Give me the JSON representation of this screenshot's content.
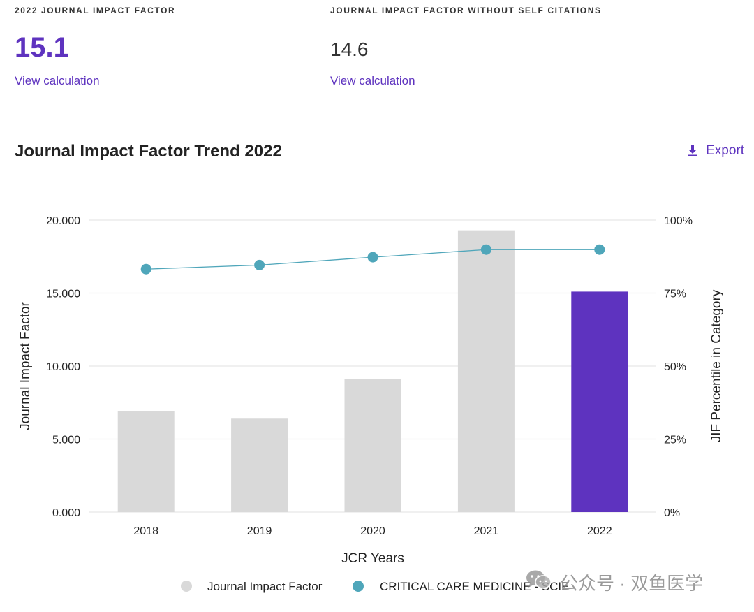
{
  "metrics": [
    {
      "label": "2022 JOURNAL IMPACT FACTOR",
      "value": "15.1",
      "link": "View calculation"
    },
    {
      "label": "JOURNAL IMPACT FACTOR WITHOUT SELF CITATIONS",
      "value": "14.6",
      "link": "View calculation"
    }
  ],
  "section": {
    "title": "Journal Impact Factor Trend 2022",
    "export_label": "Export"
  },
  "watermark": {
    "text": "公众号 · 双鱼医学",
    "icon": "wechat-icon"
  },
  "colors": {
    "accent": "#5e33bf",
    "bar_default": "#d9d9d9",
    "bar_highlight": "#5e33bf",
    "line": "#4fa6ba",
    "grid": "#e6e6e6"
  },
  "chart_data": {
    "type": "bar",
    "categories": [
      "2018",
      "2019",
      "2020",
      "2021",
      "2022"
    ],
    "series": [
      {
        "name": "Journal Impact Factor",
        "type": "bar",
        "axis": "left",
        "values": [
          6.9,
          6.4,
          9.1,
          19.3,
          15.1
        ],
        "highlight_index": 4
      },
      {
        "name": "CRITICAL CARE MEDICINE - SCIE",
        "type": "line",
        "axis": "right",
        "values": [
          83.2,
          84.6,
          87.3,
          89.9,
          89.9
        ]
      }
    ],
    "xlabel": "JCR Years",
    "ylabel": "Journal Impact Factor",
    "y2label": "JIF Percentile in Category",
    "ylim": [
      0,
      20
    ],
    "y2lim": [
      0,
      100
    ],
    "yticks": [
      "0.000",
      "5.000",
      "10.000",
      "15.000",
      "20.000"
    ],
    "y2ticks": [
      "0%",
      "25%",
      "50%",
      "75%",
      "100%"
    ],
    "grid": true,
    "legend": "bottom"
  }
}
